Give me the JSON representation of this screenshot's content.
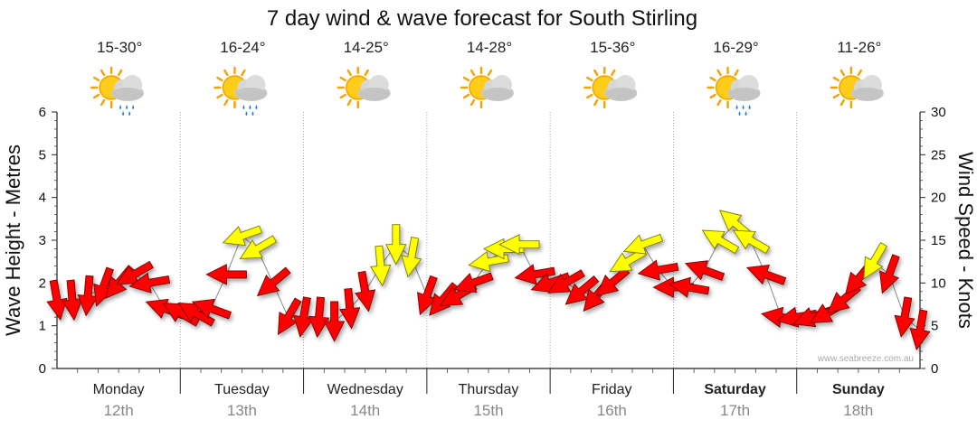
{
  "chart_data": {
    "type": "line",
    "title": "7 day wind & wave forecast for South Stirling",
    "ylabel_left": "Wave Height - Metres",
    "ylabel_right": "Wind Speed - Knots",
    "ylim_left": [
      0,
      6
    ],
    "ylim_right": [
      0,
      30
    ],
    "yticks_left": [
      "0",
      "1",
      "2",
      "3",
      "4",
      "5",
      "6"
    ],
    "yticks_right": [
      "0",
      "5",
      "10",
      "15",
      "20",
      "25",
      "30"
    ],
    "days": [
      {
        "name": "Monday",
        "date": "12th",
        "temp": "15-30°",
        "icon": "sun-cloud-rain-icon",
        "bold": false
      },
      {
        "name": "Tuesday",
        "date": "13th",
        "temp": "16-24°",
        "icon": "sun-cloud-rain-icon",
        "bold": false
      },
      {
        "name": "Wednesday",
        "date": "14th",
        "temp": "14-25°",
        "icon": "sun-cloud-icon",
        "bold": false
      },
      {
        "name": "Thursday",
        "date": "15th",
        "temp": "14-28°",
        "icon": "sun-cloud-icon",
        "bold": false
      },
      {
        "name": "Friday",
        "date": "16th",
        "temp": "15-36°",
        "icon": "sun-cloud-icon",
        "bold": false
      },
      {
        "name": "Saturday",
        "date": "17th",
        "temp": "16-29°",
        "icon": "sun-cloud-rain-icon",
        "bold": true
      },
      {
        "name": "Sunday",
        "date": "18th",
        "temp": "11-26°",
        "icon": "sun-cloud-icon",
        "bold": true
      }
    ],
    "wind_series": {
      "name": "Wind Speed (knots)",
      "x_days": [
        0.0,
        0.125,
        0.25,
        0.375,
        0.5,
        0.625,
        0.75,
        0.875,
        1.0,
        1.125,
        1.25,
        1.375,
        1.5,
        1.625,
        1.75,
        1.875,
        2.0,
        2.125,
        2.25,
        2.375,
        2.5,
        2.625,
        2.75,
        2.875,
        3.0,
        3.125,
        3.25,
        3.375,
        3.5,
        3.625,
        3.75,
        3.875,
        4.0,
        4.125,
        4.25,
        4.375,
        4.5,
        4.625,
        4.75,
        4.875,
        5.0,
        5.125,
        5.25,
        5.375,
        5.5,
        5.625,
        5.75,
        5.875,
        6.0,
        6.125,
        6.25,
        6.375,
        6.5,
        6.625,
        6.75,
        6.875,
        7.0
      ],
      "values": [
        8,
        8,
        8.5,
        9.5,
        10,
        11,
        10,
        7,
        6.5,
        6.5,
        7,
        11,
        15.5,
        14,
        10,
        6,
        6,
        6,
        5.5,
        7,
        9,
        12,
        14.5,
        13,
        8.5,
        8,
        8.5,
        10,
        12.5,
        14,
        14.5,
        11,
        10,
        10,
        9,
        8.5,
        10,
        12.5,
        14.5,
        11.5,
        9.5,
        9.5,
        11.5,
        15,
        17,
        15,
        11,
        6,
        6,
        6,
        6.5,
        8,
        10.5,
        12.5,
        11,
        6,
        4.5
      ],
      "direction_deg": [
        80,
        85,
        95,
        110,
        130,
        150,
        170,
        200,
        210,
        210,
        200,
        180,
        160,
        150,
        140,
        120,
        100,
        95,
        90,
        85,
        80,
        85,
        90,
        100,
        110,
        130,
        150,
        160,
        170,
        180,
        180,
        170,
        160,
        150,
        140,
        130,
        140,
        150,
        160,
        170,
        180,
        190,
        200,
        210,
        220,
        210,
        200,
        190,
        170,
        160,
        150,
        140,
        130,
        120,
        110,
        100,
        100
      ]
    },
    "credit": "www.seabreeze.com.au"
  }
}
